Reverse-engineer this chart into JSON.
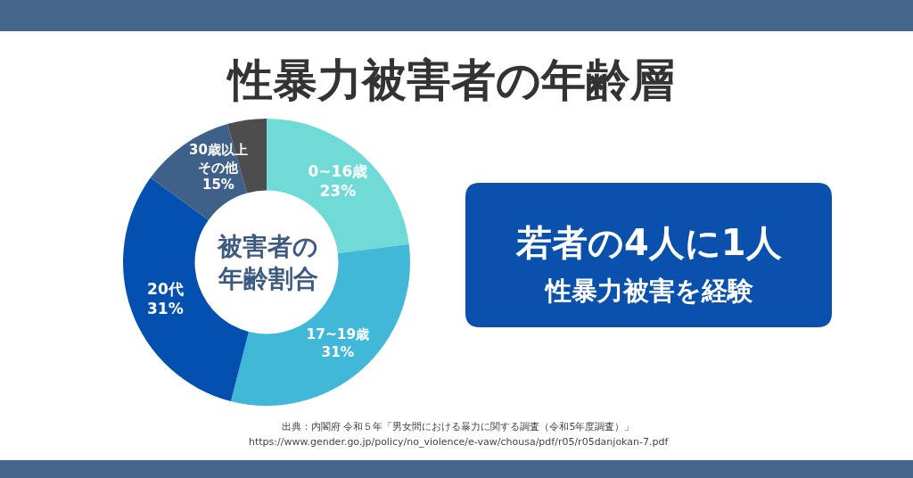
{
  "chart_data": [
    {
      "type": "donut",
      "title": "性暴力被害者の年齢層",
      "categories": [
        "0~16歳",
        "17~19歳",
        "20代",
        null,
        null
      ],
      "values": [
        23,
        31,
        31,
        10.6,
        4.4
      ],
      "colors": [
        "#70dbd6",
        "#41b8d8",
        "#0350b0",
        "#3f6189",
        "#4d4d4d"
      ],
      "value_labels": [
        "23%",
        "31%",
        "31%",
        null,
        null
      ],
      "annotations": [
        "被害者の年齢割合",
        "30歳以上その他15%",
        "出典：内閣府 令和５年「男女間における暴力に関する調査（令和5年度調査）」",
        "https://www.gender.go.jp/policy/no_violence/e-vaw/chousa/pdf/r05/r05danjokan-7.pdf"
      ]
    },
    {
      "type": "other",
      "annotations": [
        "若者の4人に1人",
        "性暴力被害を経験"
      ]
    }
  ]
}
